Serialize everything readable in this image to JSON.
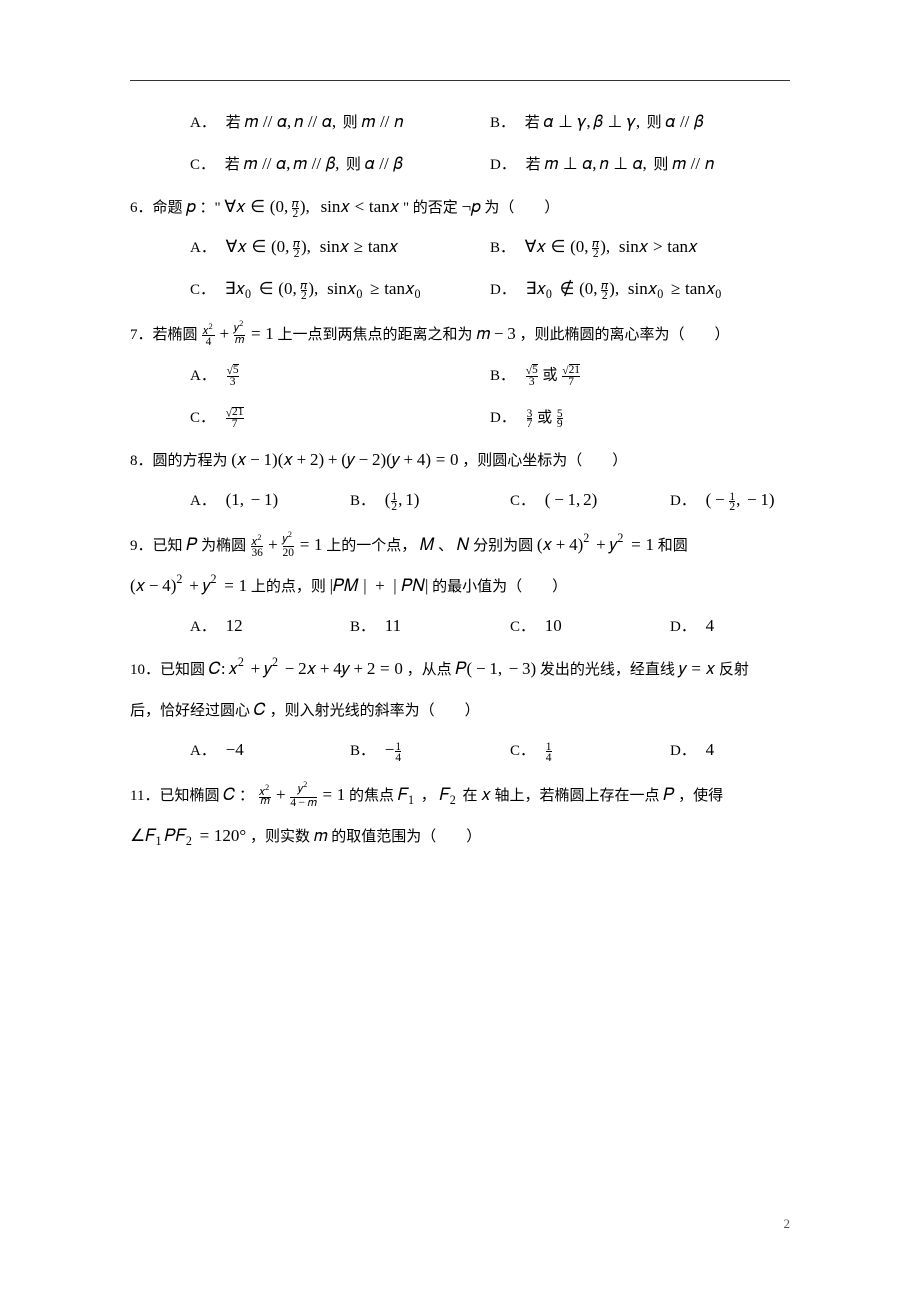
{
  "page_number": "2",
  "q5": {
    "A_label": "A．",
    "A_prefix": "若 ",
    "A_suffix": " 则 ",
    "B_label": "B．",
    "B_prefix": "若 ",
    "B_suffix": " 则 ",
    "C_label": "C．",
    "C_prefix": "若 ",
    "C_suffix": " 则 ",
    "D_label": "D．",
    "D_prefix": "若 ",
    "D_suffix": " 则 "
  },
  "q6": {
    "stem_prefix": "6．命题 ",
    "stem_mid": "：\" ",
    "stem_suffix": " \" 的否定 ",
    "stem_end": " 为（　　）",
    "A_label": "A．",
    "B_label": "B．",
    "C_label": "C．",
    "D_label": "D．"
  },
  "q7": {
    "stem_prefix": "7．若椭圆 ",
    "stem_mid": " 上一点到两焦点的距离之和为 ",
    "stem_suffix": "，则此椭圆的离心率为（　　）",
    "A_label": "A．",
    "B_label": "B．",
    "B_or": " 或 ",
    "C_label": "C．",
    "D_label": "D．",
    "D_or": " 或 "
  },
  "q8": {
    "stem_prefix": "8．圆的方程为 ",
    "stem_suffix": "，则圆心坐标为（　　）",
    "A_label": "A．",
    "B_label": "B．",
    "C_label": "C．",
    "D_label": "D．"
  },
  "q9": {
    "stem_prefix": "9．已知 ",
    "stem_mid1": " 为椭圆 ",
    "stem_mid2": " 上的一个点，",
    "stem_mid3": " 、",
    "stem_mid4": " 分别为圆 ",
    "stem_mid5": " 和圆",
    "stem_line2_mid": " 上的点，则 ",
    "stem_line2_end": " 的最小值为（　　）",
    "A_label": "A．",
    "A_val": "12",
    "B_label": "B．",
    "B_val": "11",
    "C_label": "C．",
    "C_val": "10",
    "D_label": "D．",
    "D_val": "4"
  },
  "q10": {
    "stem_prefix": "10．已知圆 ",
    "stem_mid1": "，从点 ",
    "stem_mid2": " 发出的光线，经直线 ",
    "stem_mid3": " 反射",
    "stem_line2": "后，恰好经过圆心 ",
    "stem_line2_end": "，则入射光线的斜率为（　　）",
    "A_label": "A．",
    "B_label": "B．",
    "C_label": "C．",
    "D_label": "D．",
    "D_val": "4"
  },
  "q11": {
    "stem_prefix": "11．已知椭圆 ",
    "stem_colon": "：",
    "stem_mid1": " 的焦点 ",
    "stem_mid2": "，",
    "stem_mid3": " 在 ",
    "stem_mid4": " 轴上，若椭圆上存在一点 ",
    "stem_mid5": "，使得",
    "stem_line2_mid": "，则实数 ",
    "stem_line2_end": " 的取值范围为（　　）"
  }
}
